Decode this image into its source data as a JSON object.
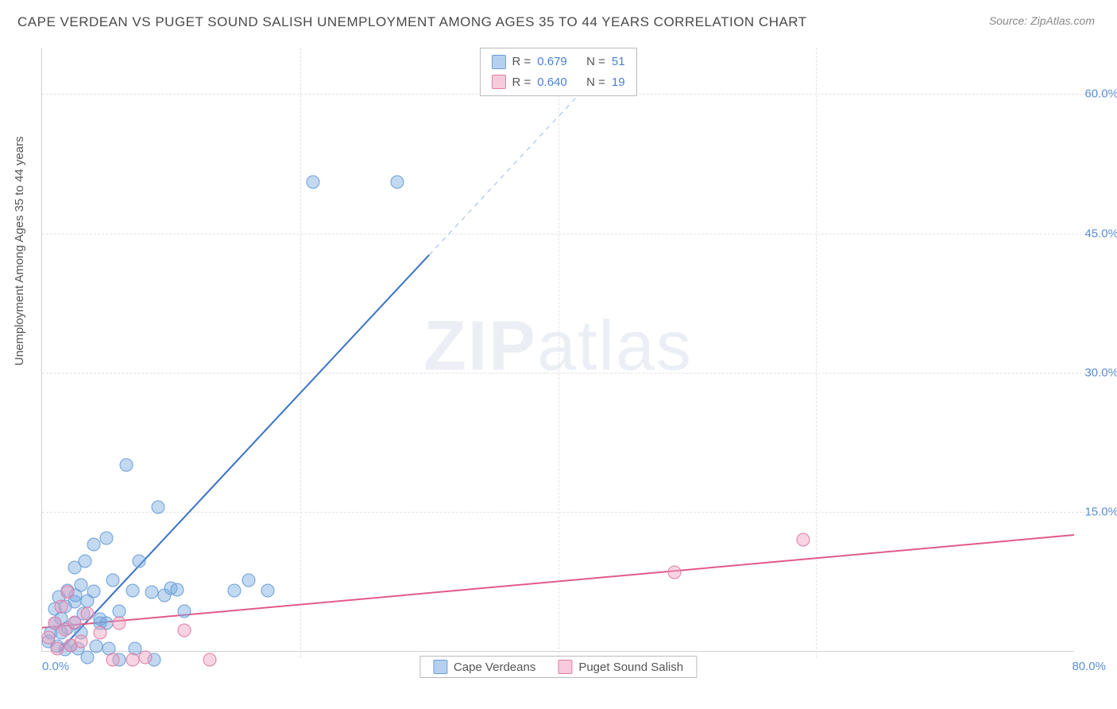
{
  "title": "CAPE VERDEAN VS PUGET SOUND SALISH UNEMPLOYMENT AMONG AGES 35 TO 44 YEARS CORRELATION CHART",
  "source": "Source: ZipAtlas.com",
  "ylabel": "Unemployment Among Ages 35 to 44 years",
  "watermark_a": "ZIP",
  "watermark_b": "atlas",
  "chart": {
    "type": "scatter",
    "background_color": "#ffffff",
    "grid_color": "#e2e2e2",
    "axis_color": "#d0d0d0",
    "tick_color": "#5b8fd6",
    "tick_fontsize": 15,
    "title_fontsize": 17,
    "label_fontsize": 15,
    "xlim": [
      0,
      80
    ],
    "ylim": [
      0,
      65
    ],
    "xtick_labels": [
      "0.0%",
      "80.0%"
    ],
    "ytick_values": [
      15,
      30,
      45,
      60
    ],
    "ytick_labels": [
      "15.0%",
      "30.0%",
      "45.0%",
      "60.0%"
    ],
    "marker_radius": 8.5,
    "series": [
      {
        "name": "Cape Verdeans",
        "key": "blue",
        "marker_fill": "rgba(120,170,225,0.45)",
        "marker_stroke": "#6b9fd8",
        "line_color": "#3a72c9",
        "line_width": 2,
        "dash_after_x": 30,
        "R": "0.679",
        "N": "51",
        "trend": {
          "x1": 0,
          "y1": -2,
          "x2": 45,
          "y2": 65
        },
        "points": [
          [
            0.5,
            1.0
          ],
          [
            0.7,
            2.0
          ],
          [
            1.0,
            3.0
          ],
          [
            1.0,
            4.5
          ],
          [
            1.2,
            0.5
          ],
          [
            1.3,
            5.8
          ],
          [
            1.5,
            2.0
          ],
          [
            1.5,
            3.5
          ],
          [
            1.8,
            0.2
          ],
          [
            1.8,
            4.8
          ],
          [
            2.0,
            6.5
          ],
          [
            2.0,
            2.5
          ],
          [
            2.2,
            0.6
          ],
          [
            2.5,
            9.0
          ],
          [
            2.5,
            3.0
          ],
          [
            2.5,
            5.3
          ],
          [
            2.6,
            6.0
          ],
          [
            2.8,
            0.3
          ],
          [
            3.0,
            7.1
          ],
          [
            3.0,
            2.0
          ],
          [
            3.2,
            4.0
          ],
          [
            3.3,
            9.7
          ],
          [
            3.5,
            5.4
          ],
          [
            3.5,
            -0.7
          ],
          [
            4.0,
            11.5
          ],
          [
            4.0,
            6.4
          ],
          [
            4.2,
            0.5
          ],
          [
            4.5,
            3.0
          ],
          [
            4.5,
            3.4
          ],
          [
            5.0,
            12.2
          ],
          [
            5.0,
            3.0
          ],
          [
            5.2,
            0.3
          ],
          [
            5.5,
            7.6
          ],
          [
            6.0,
            -0.9
          ],
          [
            6.0,
            4.3
          ],
          [
            6.5,
            20.0
          ],
          [
            7.0,
            6.5
          ],
          [
            7.2,
            0.3
          ],
          [
            7.5,
            9.7
          ],
          [
            8.5,
            6.3
          ],
          [
            8.7,
            -0.9
          ],
          [
            9.0,
            15.5
          ],
          [
            9.5,
            6.0
          ],
          [
            10.0,
            6.8
          ],
          [
            10.5,
            6.6
          ],
          [
            11.0,
            4.3
          ],
          [
            14.9,
            6.5
          ],
          [
            16.0,
            7.6
          ],
          [
            17.5,
            6.5
          ],
          [
            21.0,
            50.5
          ],
          [
            27.5,
            50.5
          ]
        ]
      },
      {
        "name": "Puget Sound Salish",
        "key": "pink",
        "marker_fill": "rgba(240,160,190,0.45)",
        "marker_stroke": "#e37ba5",
        "line_color": "#e05a8a",
        "line_width": 2,
        "R": "0.640",
        "N": "19",
        "trend": {
          "x1": 0,
          "y1": 2.5,
          "x2": 80,
          "y2": 12.5
        },
        "points": [
          [
            0.5,
            1.5
          ],
          [
            1.0,
            3.0
          ],
          [
            1.2,
            0.3
          ],
          [
            1.5,
            4.8
          ],
          [
            1.8,
            2.3
          ],
          [
            2.0,
            6.3
          ],
          [
            2.2,
            0.6
          ],
          [
            2.5,
            3.1
          ],
          [
            3.0,
            1.0
          ],
          [
            3.5,
            4.0
          ],
          [
            4.5,
            2.0
          ],
          [
            5.5,
            -0.9
          ],
          [
            6.0,
            3.0
          ],
          [
            7.0,
            -0.9
          ],
          [
            8.0,
            -0.7
          ],
          [
            11.0,
            2.2
          ],
          [
            13.0,
            -0.9
          ],
          [
            49.0,
            8.5
          ],
          [
            59.0,
            12.0
          ]
        ]
      }
    ],
    "legend_labels": {
      "R": "R =",
      "N": "N ="
    }
  }
}
